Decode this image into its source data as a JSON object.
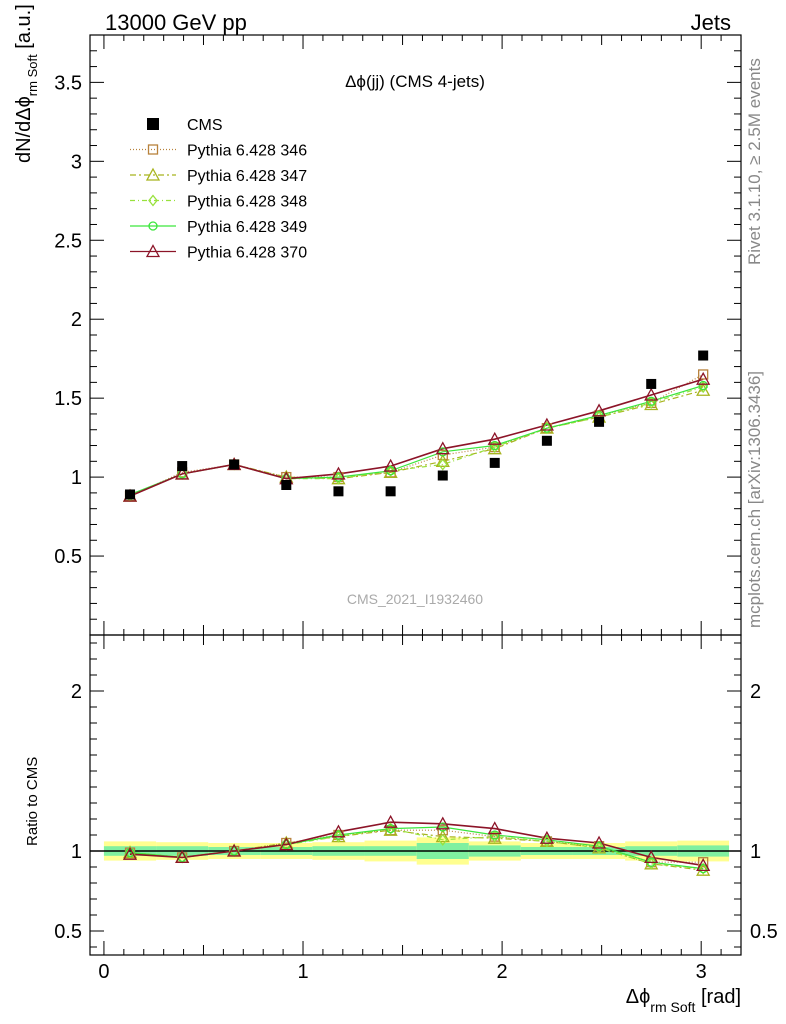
{
  "header": {
    "energy_label": "13000 GeV pp",
    "category_label": "Jets"
  },
  "side_text": {
    "rivet": "Rivet 3.1.10, ≥ 2.5M events",
    "mcplots": "mcplots.cern.ch [arXiv:1306.3436]"
  },
  "analysis_id": "CMS_2021_I1932460",
  "chart_data": [
    {
      "type": "scatter",
      "title": "Δϕ(jj) (CMS 4-jets)",
      "ylabel": "dN/dΔϕ rm Soft [a.u.]",
      "ylim": [
        0,
        3.8
      ],
      "xlim": [
        -0.07,
        3.2
      ],
      "y_ticks": [
        "0.5",
        "1",
        "1.5",
        "2",
        "2.5",
        "3",
        "3.5"
      ],
      "grid": false,
      "legend_position": "top-left",
      "x": [
        0.131,
        0.393,
        0.654,
        0.916,
        1.178,
        1.44,
        1.702,
        1.963,
        2.225,
        2.487,
        2.749,
        3.01
      ],
      "series": [
        {
          "name": "CMS",
          "color": "#000000",
          "marker": "square-filled",
          "values": [
            0.89,
            1.07,
            1.08,
            0.95,
            0.91,
            0.91,
            1.01,
            1.09,
            1.23,
            1.35,
            1.59,
            1.77
          ]
        },
        {
          "name": "Pythia 6.428 346",
          "color": "#b8823c",
          "marker": "square-open",
          "dash": "1,2",
          "values": [
            0.88,
            1.03,
            1.08,
            1.0,
            1.0,
            1.03,
            1.14,
            1.19,
            1.31,
            1.39,
            1.47,
            1.65
          ]
        },
        {
          "name": "Pythia 6.428 347",
          "color": "#a8b41e",
          "marker": "triangle-open",
          "dash": "6,3,2,3",
          "values": [
            0.88,
            1.02,
            1.08,
            1.0,
            0.99,
            1.03,
            1.1,
            1.18,
            1.31,
            1.38,
            1.46,
            1.55
          ]
        },
        {
          "name": "Pythia 6.428 348",
          "color": "#98e13c",
          "marker": "diamond-open",
          "dash": "5,3,1,3",
          "values": [
            0.88,
            1.02,
            1.08,
            0.99,
            0.99,
            1.04,
            1.08,
            1.19,
            1.31,
            1.38,
            1.47,
            1.57
          ]
        },
        {
          "name": "Pythia 6.428 349",
          "color": "#3ce63c",
          "marker": "circle-open",
          "dash": "",
          "values": [
            0.89,
            1.02,
            1.08,
            0.99,
            1.0,
            1.04,
            1.16,
            1.2,
            1.31,
            1.39,
            1.48,
            1.58
          ]
        },
        {
          "name": "Pythia 6.428 370",
          "color": "#8c1428",
          "marker": "triangle-open",
          "dash": "",
          "values": [
            0.88,
            1.02,
            1.08,
            0.99,
            1.02,
            1.07,
            1.18,
            1.24,
            1.33,
            1.42,
            1.52,
            1.62
          ]
        }
      ]
    },
    {
      "type": "line",
      "ylabel": "Ratio to CMS",
      "xlabel": "Δϕ rm Soft [rad]",
      "ylim": [
        0.35,
        2.35
      ],
      "xlim": [
        -0.07,
        3.2
      ],
      "x_ticks": [
        "0",
        "1",
        "2",
        "3"
      ],
      "y_ticks": [
        "0.5",
        "1",
        "2"
      ],
      "reference_line": 1,
      "uncertainty_bands": {
        "stat_color": "#80f0a0",
        "total_color": "#ffff90",
        "x_edges": [
          0.0,
          0.262,
          0.524,
          0.785,
          1.047,
          1.309,
          1.571,
          1.833,
          2.094,
          2.356,
          2.618,
          2.88,
          3.14
        ],
        "stat_halfwidth": [
          0.03,
          0.03,
          0.025,
          0.025,
          0.03,
          0.03,
          0.05,
          0.035,
          0.025,
          0.025,
          0.03,
          0.035
        ],
        "total_halfwidth": [
          0.06,
          0.055,
          0.05,
          0.05,
          0.055,
          0.065,
          0.085,
          0.06,
          0.05,
          0.05,
          0.06,
          0.065
        ]
      },
      "series": [
        {
          "name": "Pythia 6.428 346",
          "values": [
            0.99,
            0.96,
            1.0,
            1.05,
            1.1,
            1.13,
            1.13,
            1.09,
            1.06,
            1.03,
            0.93,
            0.93
          ]
        },
        {
          "name": "Pythia 6.428 347",
          "values": [
            0.99,
            0.96,
            1.0,
            1.05,
            1.09,
            1.13,
            1.09,
            1.08,
            1.06,
            1.02,
            0.92,
            0.88
          ]
        },
        {
          "name": "Pythia 6.428 348",
          "values": [
            0.99,
            0.96,
            1.0,
            1.04,
            1.09,
            1.14,
            1.07,
            1.09,
            1.06,
            1.02,
            0.92,
            0.89
          ]
        },
        {
          "name": "Pythia 6.428 349",
          "values": [
            0.99,
            0.96,
            1.0,
            1.04,
            1.1,
            1.14,
            1.15,
            1.1,
            1.07,
            1.03,
            0.93,
            0.89
          ]
        },
        {
          "name": "Pythia 6.428 370",
          "values": [
            0.98,
            0.96,
            1.0,
            1.04,
            1.12,
            1.18,
            1.17,
            1.14,
            1.08,
            1.05,
            0.96,
            0.91
          ]
        }
      ]
    }
  ]
}
